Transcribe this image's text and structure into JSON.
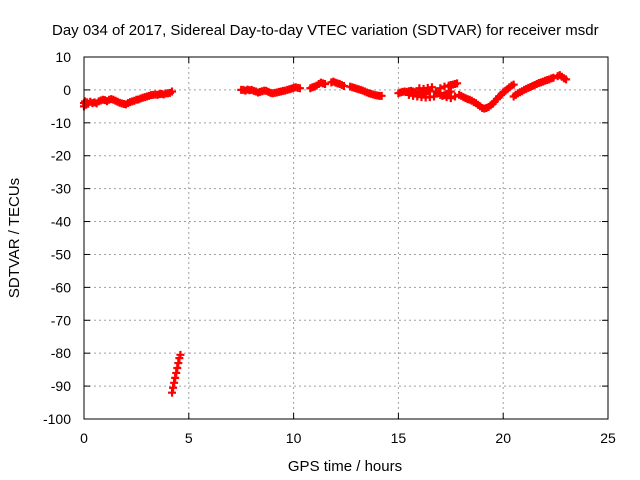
{
  "chart_data": {
    "type": "scatter",
    "title": "Day 034 of 2017, Sidereal Day-to-day VTEC variation (SDTVAR) for receiver msdr",
    "xlabel": "GPS time / hours",
    "ylabel": "SDTVAR / TECUs",
    "xlim": [
      0,
      25
    ],
    "ylim": [
      -100,
      10
    ],
    "xticks": [
      0,
      5,
      10,
      15,
      20,
      25
    ],
    "yticks": [
      10,
      0,
      -10,
      -20,
      -30,
      -40,
      -50,
      -60,
      -70,
      -80,
      -90,
      -100
    ],
    "grid": true,
    "marker": "plus",
    "series": [
      {
        "name": "SDTVAR",
        "color": "#ff0000",
        "points": [
          [
            0.0,
            -5.0
          ],
          [
            0.0,
            -4.0
          ],
          [
            0.05,
            -3.5
          ],
          [
            0.1,
            -4.5
          ],
          [
            0.15,
            -3.8
          ],
          [
            0.2,
            -4.2
          ],
          [
            0.3,
            -3.6
          ],
          [
            0.4,
            -4.0
          ],
          [
            0.5,
            -3.8
          ],
          [
            0.6,
            -4.1
          ],
          [
            0.7,
            -3.5
          ],
          [
            0.8,
            -3.2
          ],
          [
            0.9,
            -3.0
          ],
          [
            1.0,
            -3.1
          ],
          [
            1.1,
            -3.4
          ],
          [
            1.2,
            -3.0
          ],
          [
            1.3,
            -2.8
          ],
          [
            1.4,
            -3.0
          ],
          [
            1.5,
            -3.3
          ],
          [
            1.6,
            -3.6
          ],
          [
            1.7,
            -3.9
          ],
          [
            1.8,
            -4.1
          ],
          [
            1.9,
            -4.3
          ],
          [
            2.0,
            -4.4
          ],
          [
            2.1,
            -4.0
          ],
          [
            2.2,
            -3.7
          ],
          [
            2.3,
            -3.5
          ],
          [
            2.4,
            -3.3
          ],
          [
            2.5,
            -3.0
          ],
          [
            2.6,
            -2.9
          ],
          [
            2.7,
            -2.6
          ],
          [
            2.8,
            -2.4
          ],
          [
            2.9,
            -2.2
          ],
          [
            3.0,
            -2.0
          ],
          [
            3.1,
            -1.8
          ],
          [
            3.2,
            -1.6
          ],
          [
            3.3,
            -1.5
          ],
          [
            3.4,
            -1.4
          ],
          [
            3.5,
            -1.5
          ],
          [
            3.6,
            -1.3
          ],
          [
            3.7,
            -1.2
          ],
          [
            3.8,
            -1.4
          ],
          [
            3.9,
            -1.1
          ],
          [
            4.0,
            -1.0
          ],
          [
            4.1,
            -0.9
          ],
          [
            4.2,
            -0.5
          ],
          [
            4.2,
            -92.0
          ],
          [
            4.25,
            -90.5
          ],
          [
            4.3,
            -89.0
          ],
          [
            4.35,
            -87.5
          ],
          [
            4.4,
            -86.0
          ],
          [
            4.45,
            -84.5
          ],
          [
            4.5,
            -83.0
          ],
          [
            4.55,
            -81.5
          ],
          [
            4.6,
            -80.5
          ],
          [
            7.5,
            0.0
          ],
          [
            7.6,
            0.0
          ],
          [
            7.7,
            -0.2
          ],
          [
            7.8,
            0.1
          ],
          [
            7.9,
            -0.1
          ],
          [
            8.0,
            0.0
          ],
          [
            8.1,
            -0.3
          ],
          [
            8.2,
            -0.5
          ],
          [
            8.3,
            -0.8
          ],
          [
            8.4,
            -0.6
          ],
          [
            8.5,
            -0.4
          ],
          [
            8.6,
            -0.2
          ],
          [
            8.7,
            -0.3
          ],
          [
            8.8,
            -0.6
          ],
          [
            8.9,
            -0.9
          ],
          [
            9.0,
            -1.0
          ],
          [
            9.1,
            -0.9
          ],
          [
            9.2,
            -0.8
          ],
          [
            9.3,
            -0.6
          ],
          [
            9.4,
            -0.5
          ],
          [
            9.5,
            -0.3
          ],
          [
            9.6,
            -0.2
          ],
          [
            9.7,
            0.0
          ],
          [
            9.8,
            0.2
          ],
          [
            9.9,
            0.4
          ],
          [
            10.0,
            0.6
          ],
          [
            10.1,
            0.8
          ],
          [
            10.2,
            0.6
          ],
          [
            10.3,
            0.5
          ],
          [
            10.8,
            0.5
          ],
          [
            10.9,
            0.8
          ],
          [
            11.0,
            1.0
          ],
          [
            11.1,
            1.3
          ],
          [
            11.2,
            1.8
          ],
          [
            11.3,
            2.2
          ],
          [
            11.4,
            2.0
          ],
          [
            11.5,
            1.8
          ],
          [
            11.8,
            2.3
          ],
          [
            11.9,
            2.5
          ],
          [
            12.0,
            2.2
          ],
          [
            12.1,
            2.0
          ],
          [
            12.2,
            1.8
          ],
          [
            12.3,
            1.5
          ],
          [
            12.4,
            1.2
          ],
          [
            12.7,
            1.0
          ],
          [
            12.8,
            0.8
          ],
          [
            12.9,
            0.6
          ],
          [
            13.0,
            0.4
          ],
          [
            13.1,
            0.2
          ],
          [
            13.2,
            0.0
          ],
          [
            13.3,
            -0.2
          ],
          [
            13.4,
            -0.5
          ],
          [
            13.5,
            -0.8
          ],
          [
            13.6,
            -1.0
          ],
          [
            13.7,
            -1.2
          ],
          [
            13.8,
            -1.4
          ],
          [
            13.9,
            -1.6
          ],
          [
            14.0,
            -1.7
          ],
          [
            14.1,
            -1.8
          ],
          [
            14.2,
            -1.8
          ],
          [
            15.0,
            -1.0
          ],
          [
            15.1,
            -0.8
          ],
          [
            15.2,
            -0.6
          ],
          [
            15.3,
            -0.5
          ],
          [
            15.4,
            -0.6
          ],
          [
            15.5,
            -0.4
          ],
          [
            15.6,
            -0.3
          ],
          [
            15.7,
            -0.5
          ],
          [
            15.8,
            -0.7
          ],
          [
            15.9,
            -0.9
          ],
          [
            16.0,
            -1.0
          ],
          [
            16.1,
            -1.1
          ],
          [
            16.2,
            -1.0
          ],
          [
            16.3,
            -0.8
          ],
          [
            16.4,
            -0.5
          ],
          [
            16.5,
            -0.2
          ],
          [
            15.5,
            -1.5
          ],
          [
            15.7,
            -1.8
          ],
          [
            15.9,
            -2.0
          ],
          [
            16.1,
            -2.2
          ],
          [
            16.3,
            -2.3
          ],
          [
            16.5,
            -2.2
          ],
          [
            16.7,
            -2.0
          ],
          [
            16.0,
            0.5
          ],
          [
            16.2,
            0.3
          ],
          [
            16.4,
            0.6
          ],
          [
            16.6,
            0.8
          ],
          [
            16.8,
            -0.5
          ],
          [
            16.9,
            -1.0
          ],
          [
            17.0,
            -1.5
          ],
          [
            17.1,
            -1.8
          ],
          [
            17.2,
            -1.6
          ],
          [
            17.3,
            -1.2
          ],
          [
            17.4,
            -0.8
          ],
          [
            17.5,
            -0.5
          ],
          [
            17.0,
            0.5
          ],
          [
            17.2,
            1.0
          ],
          [
            17.4,
            1.3
          ],
          [
            17.6,
            1.6
          ],
          [
            17.7,
            1.8
          ],
          [
            17.8,
            2.0
          ],
          [
            17.5,
            1.5
          ],
          [
            17.3,
            -2.2
          ],
          [
            17.5,
            -2.5
          ],
          [
            17.7,
            -2.0
          ],
          [
            17.9,
            -1.5
          ],
          [
            18.0,
            -1.8
          ],
          [
            18.1,
            -2.2
          ],
          [
            18.2,
            -2.5
          ],
          [
            18.3,
            -2.8
          ],
          [
            18.4,
            -3.0
          ],
          [
            18.5,
            -3.3
          ],
          [
            18.6,
            -3.7
          ],
          [
            18.7,
            -4.0
          ],
          [
            18.8,
            -4.5
          ],
          [
            18.9,
            -5.0
          ],
          [
            19.0,
            -5.5
          ],
          [
            19.1,
            -5.7
          ],
          [
            19.2,
            -5.5
          ],
          [
            19.3,
            -5.2
          ],
          [
            19.4,
            -4.7
          ],
          [
            19.5,
            -4.2
          ],
          [
            19.6,
            -3.5
          ],
          [
            19.7,
            -2.8
          ],
          [
            19.8,
            -2.0
          ],
          [
            19.9,
            -1.5
          ],
          [
            20.0,
            -0.8
          ],
          [
            20.1,
            -0.3
          ],
          [
            20.2,
            0.2
          ],
          [
            20.3,
            0.8
          ],
          [
            20.4,
            1.3
          ],
          [
            20.5,
            1.6
          ],
          [
            20.5,
            -2.0
          ],
          [
            20.6,
            -1.5
          ],
          [
            20.7,
            -1.0
          ],
          [
            20.8,
            -0.7
          ],
          [
            20.9,
            -0.4
          ],
          [
            21.0,
            0.0
          ],
          [
            21.1,
            0.3
          ],
          [
            21.2,
            0.6
          ],
          [
            21.3,
            0.9
          ],
          [
            21.4,
            1.2
          ],
          [
            21.5,
            1.5
          ],
          [
            21.6,
            1.8
          ],
          [
            21.7,
            2.1
          ],
          [
            21.8,
            2.3
          ],
          [
            21.9,
            2.5
          ],
          [
            22.0,
            2.8
          ],
          [
            22.1,
            3.0
          ],
          [
            22.2,
            3.2
          ],
          [
            22.3,
            3.5
          ],
          [
            22.4,
            3.7
          ],
          [
            22.6,
            4.2
          ],
          [
            22.7,
            4.5
          ],
          [
            22.8,
            4.0
          ],
          [
            22.9,
            3.5
          ],
          [
            23.0,
            3.2
          ]
        ]
      }
    ]
  }
}
